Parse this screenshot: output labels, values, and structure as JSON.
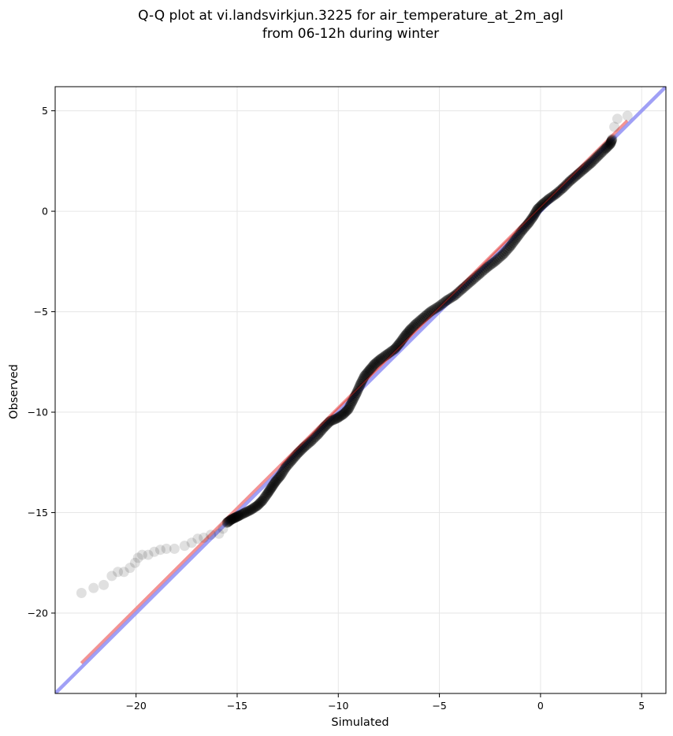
{
  "chart_data": {
    "type": "scatter",
    "title": "Q-Q plot at vi.landsvirkjun.3225 for air_temperature_at_2m_agl",
    "subtitle": "from 06-12h during winter",
    "xlabel": "Simulated",
    "ylabel": "Observed",
    "xlim": [
      -24.0,
      6.2
    ],
    "ylim": [
      -24.0,
      6.2
    ],
    "x_ticks": [
      -20,
      -15,
      -10,
      -5,
      0,
      5
    ],
    "y_ticks": [
      5,
      0,
      -5,
      -10,
      -15,
      -20
    ],
    "x_tick_labels": [
      "−20",
      "−15",
      "−10",
      "−5",
      "0",
      "5"
    ],
    "y_tick_labels": [
      "5",
      "0",
      "−5",
      "−10",
      "−15",
      "−20"
    ],
    "grid": true,
    "series": [
      {
        "marker_color": "#000000",
        "points": [
          [
            -22.7,
            -19.0
          ],
          [
            -22.1,
            -18.75
          ],
          [
            -21.6,
            -18.6
          ],
          [
            -21.2,
            -18.15
          ],
          [
            -20.9,
            -17.95
          ],
          [
            -20.6,
            -17.95
          ],
          [
            -20.3,
            -17.75
          ],
          [
            -20.05,
            -17.5
          ],
          [
            -19.9,
            -17.25
          ],
          [
            -19.7,
            -17.1
          ],
          [
            -19.4,
            -17.1
          ],
          [
            -19.1,
            -16.95
          ],
          [
            -18.8,
            -16.85
          ],
          [
            -18.5,
            -16.8
          ],
          [
            -18.1,
            -16.8
          ],
          [
            -17.6,
            -16.65
          ],
          [
            -17.25,
            -16.5
          ],
          [
            -16.95,
            -16.3
          ],
          [
            -16.65,
            -16.25
          ],
          [
            -16.3,
            -16.1
          ],
          [
            -15.9,
            -16.05
          ],
          [
            -15.7,
            -15.8
          ],
          [
            -15.5,
            -15.5
          ],
          [
            -15.3,
            -15.35
          ],
          [
            -15.1,
            -15.25
          ],
          [
            -14.9,
            -15.15
          ],
          [
            -14.6,
            -15.0
          ],
          [
            -14.3,
            -14.85
          ],
          [
            -14.0,
            -14.65
          ],
          [
            -13.75,
            -14.4
          ],
          [
            -13.5,
            -14.05
          ],
          [
            -13.3,
            -13.75
          ],
          [
            -13.1,
            -13.45
          ],
          [
            -12.85,
            -13.15
          ],
          [
            -12.6,
            -12.75
          ],
          [
            -12.3,
            -12.4
          ],
          [
            -12.0,
            -12.05
          ],
          [
            -11.7,
            -11.75
          ],
          [
            -11.35,
            -11.45
          ],
          [
            -11.0,
            -11.1
          ],
          [
            -10.7,
            -10.75
          ],
          [
            -10.4,
            -10.45
          ],
          [
            -10.05,
            -10.3
          ],
          [
            -9.75,
            -10.1
          ],
          [
            -9.5,
            -9.85
          ],
          [
            -9.3,
            -9.45
          ],
          [
            -9.1,
            -9.05
          ],
          [
            -8.9,
            -8.6
          ],
          [
            -8.7,
            -8.2
          ],
          [
            -8.45,
            -7.9
          ],
          [
            -8.2,
            -7.6
          ],
          [
            -7.9,
            -7.35
          ],
          [
            -7.55,
            -7.1
          ],
          [
            -7.2,
            -6.85
          ],
          [
            -6.95,
            -6.55
          ],
          [
            -6.7,
            -6.2
          ],
          [
            -6.45,
            -5.9
          ],
          [
            -6.15,
            -5.6
          ],
          [
            -5.8,
            -5.3
          ],
          [
            -5.45,
            -5.0
          ],
          [
            -5.05,
            -4.75
          ],
          [
            -4.65,
            -4.45
          ],
          [
            -4.25,
            -4.2
          ],
          [
            -3.85,
            -3.85
          ],
          [
            -3.45,
            -3.5
          ],
          [
            -3.05,
            -3.15
          ],
          [
            -2.65,
            -2.8
          ],
          [
            -2.25,
            -2.5
          ],
          [
            -1.85,
            -2.15
          ],
          [
            -1.5,
            -1.75
          ],
          [
            -1.2,
            -1.35
          ],
          [
            -0.9,
            -0.95
          ],
          [
            -0.6,
            -0.6
          ],
          [
            -0.35,
            -0.25
          ],
          [
            -0.15,
            0.1
          ],
          [
            0.1,
            0.35
          ],
          [
            0.4,
            0.6
          ],
          [
            0.75,
            0.85
          ],
          [
            1.1,
            1.15
          ],
          [
            1.45,
            1.5
          ],
          [
            1.8,
            1.8
          ],
          [
            2.15,
            2.1
          ],
          [
            2.5,
            2.4
          ],
          [
            2.85,
            2.75
          ],
          [
            3.2,
            3.1
          ],
          [
            3.45,
            3.35
          ],
          [
            3.55,
            3.6
          ],
          [
            3.65,
            4.2
          ],
          [
            3.8,
            4.6
          ],
          [
            4.3,
            4.75
          ]
        ]
      }
    ],
    "lines": [
      {
        "color": "#f08080",
        "from": [
          -22.7,
          -22.5
        ],
        "to": [
          4.3,
          4.5
        ]
      },
      {
        "color": "#8f8ff5",
        "from": [
          -24.0,
          -24.0
        ],
        "to": [
          6.2,
          6.2
        ]
      }
    ]
  }
}
